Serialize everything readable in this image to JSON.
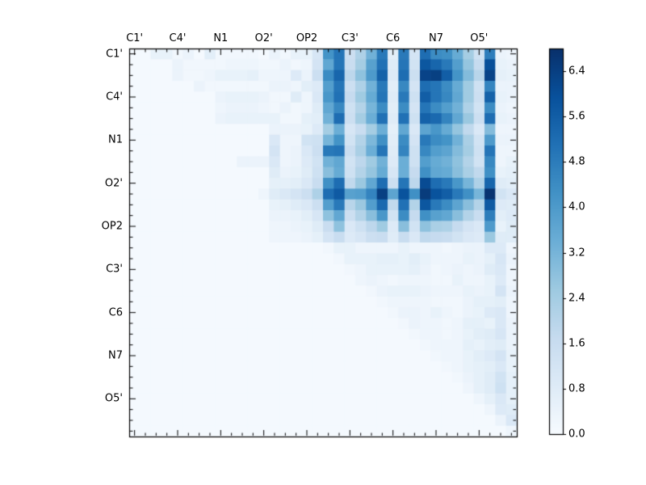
{
  "figure": {
    "background": "#ffffff",
    "axis_color": "#000000",
    "text_color": "#000000"
  },
  "chart_data": {
    "type": "heatmap",
    "n_cells": 36,
    "axis_labels": [
      "C1'",
      "C4'",
      "N1",
      "O2'",
      "OP2",
      "C3'",
      "C6",
      "N7",
      "O5'"
    ],
    "label_cell_indices": [
      0,
      4,
      8,
      12,
      16,
      20,
      24,
      28,
      32
    ],
    "x_axis_side": "top",
    "y_axis_side": "left",
    "grid": false,
    "vmin": 0.0,
    "vmax": 6.8,
    "colormap": {
      "name": "Blues",
      "anchors": [
        [
          0.0,
          "#f7fbff"
        ],
        [
          0.125,
          "#deebf7"
        ],
        [
          0.25,
          "#c6dbef"
        ],
        [
          0.375,
          "#9ecae1"
        ],
        [
          0.5,
          "#6baed6"
        ],
        [
          0.625,
          "#4292c6"
        ],
        [
          0.75,
          "#2171b5"
        ],
        [
          0.875,
          "#08519c"
        ],
        [
          1.0,
          "#08306b"
        ]
      ]
    },
    "colorbar": {
      "position": "right",
      "tick_values": [
        0.0,
        0.8,
        1.6,
        2.4,
        3.2,
        4.0,
        4.8,
        5.6,
        6.4
      ],
      "tick_labels": [
        "0.0",
        "0.8",
        "1.6",
        "2.4",
        "3.2",
        "4.0",
        "4.8",
        "5.6",
        "6.4"
      ]
    },
    "matrix": [
      [
        0.1,
        0.1,
        0.5,
        0.5,
        0.2,
        0.4,
        0.1,
        0.7,
        0.2,
        0.2,
        0.2,
        0.2,
        0.1,
        0.4,
        0.2,
        0.5,
        0.5,
        1.1,
        4.2,
        5.0,
        1.5,
        2.2,
        3.3,
        4.9,
        0.7,
        4.9,
        1.2,
        5.2,
        4.4,
        4.3,
        3.5,
        2.4,
        1.4,
        4.8,
        0.4,
        0.3
      ],
      [
        0.1,
        0.1,
        0.1,
        0.1,
        0.4,
        0.2,
        0.2,
        0.2,
        0.2,
        0.3,
        0.3,
        0.3,
        0.2,
        0.2,
        0.4,
        0.2,
        0.3,
        1.2,
        3.6,
        5.0,
        1.6,
        2.4,
        3.8,
        5.1,
        0.8,
        5.0,
        1.3,
        5.8,
        5.4,
        4.9,
        3.9,
        2.7,
        1.7,
        6.0,
        0.5,
        0.4
      ],
      [
        0.1,
        0.1,
        0.1,
        0.1,
        0.4,
        0.2,
        0.2,
        0.3,
        0.5,
        0.5,
        0.5,
        0.6,
        0.3,
        0.3,
        0.3,
        0.9,
        0.4,
        1.5,
        4.4,
        5.4,
        1.9,
        2.8,
        4.0,
        5.5,
        0.9,
        5.2,
        1.5,
        6.3,
        6.4,
        5.6,
        4.2,
        3.0,
        2.0,
        6.3,
        0.6,
        0.5
      ],
      [
        0.1,
        0.1,
        0.1,
        0.1,
        0.1,
        0.1,
        0.4,
        0.2,
        0.2,
        0.2,
        0.2,
        0.2,
        0.2,
        0.4,
        0.4,
        0.3,
        0.7,
        0.9,
        3.9,
        5.0,
        1.5,
        2.2,
        3.3,
        4.9,
        0.7,
        4.5,
        1.2,
        5.2,
        5.0,
        4.4,
        3.5,
        2.5,
        1.4,
        4.6,
        0.4,
        0.4
      ],
      [
        0.1,
        0.1,
        0.1,
        0.1,
        0.1,
        0.1,
        0.1,
        0.1,
        0.4,
        0.5,
        0.5,
        0.5,
        0.4,
        0.2,
        0.2,
        0.8,
        0.3,
        1.0,
        4.1,
        5.1,
        1.7,
        2.5,
        3.5,
        5.0,
        0.8,
        4.9,
        1.4,
        5.6,
        5.0,
        4.5,
        3.6,
        2.5,
        1.5,
        5.5,
        0.5,
        0.4
      ],
      [
        0.1,
        0.1,
        0.1,
        0.1,
        0.1,
        0.1,
        0.1,
        0.1,
        0.3,
        0.4,
        0.4,
        0.4,
        0.3,
        0.2,
        0.4,
        0.2,
        0.3,
        0.8,
        3.6,
        4.5,
        1.4,
        2.1,
        3.2,
        4.4,
        0.7,
        4.4,
        1.2,
        5.0,
        4.4,
        3.9,
        3.3,
        2.2,
        1.3,
        4.4,
        0.4,
        0.3
      ],
      [
        0.1,
        0.1,
        0.1,
        0.1,
        0.1,
        0.1,
        0.1,
        0.1,
        0.4,
        0.5,
        0.5,
        0.5,
        0.5,
        0.5,
        0.2,
        0.2,
        0.6,
        0.7,
        3.3,
        5.2,
        1.5,
        2.4,
        3.4,
        5.1,
        0.8,
        5.1,
        1.4,
        5.5,
        5.3,
        4.6,
        3.6,
        2.6,
        1.5,
        5.2,
        0.5,
        0.4
      ],
      [
        0.1,
        0.1,
        0.1,
        0.1,
        0.1,
        0.1,
        0.1,
        0.1,
        0.1,
        0.1,
        0.1,
        0.1,
        0.1,
        0.4,
        0.4,
        0.4,
        0.5,
        0.9,
        2.4,
        3.4,
        1.1,
        1.6,
        2.4,
        3.4,
        0.6,
        3.6,
        1.0,
        3.7,
        4.1,
        3.5,
        2.7,
        1.8,
        1.0,
        3.0,
        0.3,
        0.3
      ],
      [
        0.1,
        0.1,
        0.1,
        0.1,
        0.1,
        0.1,
        0.1,
        0.1,
        0.1,
        0.1,
        0.1,
        0.1,
        0.1,
        1.0,
        0.3,
        0.3,
        1.3,
        1.4,
        3.2,
        4.2,
        1.3,
        2.1,
        3.1,
        4.3,
        0.7,
        4.4,
        1.2,
        4.9,
        4.4,
        4.2,
        3.3,
        2.3,
        1.3,
        4.0,
        0.4,
        0.4
      ],
      [
        0.1,
        0.1,
        0.1,
        0.1,
        0.1,
        0.1,
        0.1,
        0.1,
        0.1,
        0.1,
        0.1,
        0.1,
        0.1,
        1.2,
        0.3,
        0.4,
        1.0,
        1.5,
        4.9,
        5.0,
        1.6,
        2.3,
        3.4,
        5.0,
        0.8,
        4.6,
        1.4,
        4.5,
        3.9,
        3.7,
        3.0,
        2.4,
        1.4,
        5.0,
        0.3,
        0.3
      ],
      [
        0.1,
        0.1,
        0.1,
        0.1,
        0.1,
        0.1,
        0.1,
        0.1,
        0.1,
        0.1,
        0.4,
        0.4,
        0.4,
        1.0,
        0.3,
        0.4,
        0.9,
        1.3,
        3.3,
        3.6,
        1.3,
        1.9,
        2.5,
        3.3,
        0.9,
        3.4,
        1.4,
        3.9,
        3.5,
        3.3,
        2.8,
        2.1,
        1.3,
        4.5,
        0.3,
        0.5
      ],
      [
        0.1,
        0.1,
        0.1,
        0.1,
        0.1,
        0.1,
        0.1,
        0.1,
        0.1,
        0.1,
        0.1,
        0.1,
        0.1,
        0.8,
        0.4,
        0.5,
        0.8,
        1.4,
        2.9,
        3.5,
        1.4,
        2.1,
        2.7,
        3.5,
        1.1,
        3.4,
        1.7,
        4.3,
        3.6,
        3.5,
        2.9,
        2.3,
        1.8,
        4.3,
        0.5,
        0.6
      ],
      [
        0.1,
        0.1,
        0.1,
        0.1,
        0.1,
        0.1,
        0.1,
        0.1,
        0.1,
        0.1,
        0.1,
        0.1,
        0.1,
        0.6,
        0.6,
        0.7,
        1.0,
        1.6,
        4.3,
        5.2,
        1.8,
        2.6,
        3.6,
        5.2,
        1.5,
        5.0,
        1.9,
        6.1,
        5.2,
        4.9,
        4.1,
        3.2,
        2.2,
        5.4,
        0.8,
        0.7
      ],
      [
        0.1,
        0.1,
        0.1,
        0.1,
        0.1,
        0.1,
        0.1,
        0.1,
        0.1,
        0.1,
        0.1,
        0.1,
        0.3,
        0.8,
        1.0,
        1.2,
        1.5,
        2.2,
        5.2,
        5.7,
        3.8,
        3.9,
        4.6,
        6.4,
        3.7,
        5.9,
        4.3,
        6.5,
        5.9,
        5.6,
        4.9,
        4.3,
        3.2,
        6.7,
        1.3,
        1.0
      ],
      [
        0.1,
        0.1,
        0.1,
        0.1,
        0.1,
        0.1,
        0.1,
        0.1,
        0.1,
        0.1,
        0.1,
        0.1,
        0.1,
        0.5,
        0.6,
        0.8,
        1.0,
        1.5,
        3.9,
        4.9,
        2.0,
        2.6,
        3.9,
        5.3,
        1.8,
        5.1,
        2.1,
        5.8,
        4.9,
        4.4,
        3.7,
        2.9,
        2.1,
        5.7,
        0.9,
        0.8
      ],
      [
        0.1,
        0.1,
        0.1,
        0.1,
        0.1,
        0.1,
        0.1,
        0.1,
        0.1,
        0.1,
        0.1,
        0.1,
        0.1,
        0.4,
        0.4,
        0.5,
        0.7,
        1.1,
        2.8,
        3.6,
        1.5,
        2.1,
        2.9,
        4.1,
        1.3,
        4.4,
        1.7,
        4.3,
        3.8,
        3.6,
        2.9,
        2.1,
        1.6,
        4.8,
        0.7,
        0.9
      ],
      [
        0.1,
        0.1,
        0.1,
        0.1,
        0.1,
        0.1,
        0.1,
        0.1,
        0.1,
        0.1,
        0.1,
        0.1,
        0.1,
        0.3,
        0.3,
        0.4,
        0.5,
        0.8,
        1.6,
        2.8,
        1.0,
        1.4,
        1.9,
        2.5,
        0.9,
        2.9,
        1.3,
        2.8,
        2.3,
        2.2,
        1.7,
        1.2,
        1.0,
        4.0,
        0.5,
        0.8
      ],
      [
        0.1,
        0.1,
        0.1,
        0.1,
        0.1,
        0.1,
        0.1,
        0.1,
        0.1,
        0.1,
        0.1,
        0.1,
        0.1,
        0.3,
        0.3,
        0.3,
        0.4,
        0.6,
        1.2,
        1.6,
        0.9,
        1.1,
        1.5,
        1.6,
        0.8,
        1.6,
        1.0,
        1.8,
        1.7,
        1.6,
        1.3,
        1.0,
        0.9,
        2.6,
        0.8,
        0.8
      ],
      [
        0.1,
        0.1,
        0.1,
        0.1,
        0.1,
        0.1,
        0.1,
        0.1,
        0.1,
        0.1,
        0.1,
        0.1,
        0.1,
        0.1,
        0.1,
        0.1,
        0.1,
        0.1,
        0.2,
        0.5,
        0.5,
        0.3,
        0.3,
        0.3,
        0.3,
        0.5,
        0.3,
        0.3,
        0.3,
        0.2,
        0.3,
        0.4,
        0.4,
        0.9,
        0.9,
        0.3
      ],
      [
        0.1,
        0.1,
        0.1,
        0.1,
        0.1,
        0.1,
        0.1,
        0.1,
        0.1,
        0.1,
        0.1,
        0.1,
        0.1,
        0.1,
        0.1,
        0.1,
        0.1,
        0.1,
        0.1,
        0.2,
        0.5,
        0.5,
        0.5,
        0.6,
        0.6,
        0.5,
        0.7,
        0.5,
        0.3,
        0.3,
        0.3,
        0.5,
        0.4,
        0.6,
        1.1,
        0.4
      ],
      [
        0.1,
        0.1,
        0.1,
        0.1,
        0.1,
        0.1,
        0.1,
        0.1,
        0.1,
        0.1,
        0.1,
        0.1,
        0.1,
        0.1,
        0.1,
        0.1,
        0.1,
        0.1,
        0.1,
        0.1,
        0.2,
        0.3,
        0.5,
        0.5,
        0.5,
        0.5,
        0.6,
        0.4,
        0.2,
        0.3,
        0.4,
        0.3,
        0.4,
        0.8,
        1.0,
        0.3
      ],
      [
        0.1,
        0.1,
        0.1,
        0.1,
        0.1,
        0.1,
        0.1,
        0.1,
        0.1,
        0.1,
        0.1,
        0.1,
        0.1,
        0.1,
        0.1,
        0.1,
        0.1,
        0.1,
        0.1,
        0.1,
        0.1,
        0.3,
        0.4,
        0.3,
        0.2,
        0.3,
        0.3,
        0.3,
        0.2,
        0.2,
        0.5,
        0.3,
        0.3,
        0.5,
        0.9,
        0.3
      ],
      [
        0.1,
        0.1,
        0.1,
        0.1,
        0.1,
        0.1,
        0.1,
        0.1,
        0.1,
        0.1,
        0.1,
        0.1,
        0.1,
        0.1,
        0.1,
        0.1,
        0.1,
        0.1,
        0.1,
        0.1,
        0.1,
        0.1,
        0.2,
        0.4,
        0.5,
        0.5,
        0.5,
        0.4,
        0.3,
        0.3,
        0.3,
        0.5,
        0.4,
        0.5,
        1.2,
        0.4
      ],
      [
        0.1,
        0.1,
        0.1,
        0.1,
        0.1,
        0.1,
        0.1,
        0.1,
        0.1,
        0.1,
        0.1,
        0.1,
        0.1,
        0.1,
        0.1,
        0.1,
        0.1,
        0.1,
        0.1,
        0.1,
        0.1,
        0.1,
        0.1,
        0.2,
        0.3,
        0.3,
        0.3,
        0.3,
        0.2,
        0.2,
        0.2,
        0.4,
        0.6,
        0.6,
        0.7,
        0.3
      ],
      [
        0.1,
        0.1,
        0.1,
        0.1,
        0.1,
        0.1,
        0.1,
        0.1,
        0.1,
        0.1,
        0.1,
        0.1,
        0.1,
        0.1,
        0.1,
        0.1,
        0.1,
        0.1,
        0.1,
        0.1,
        0.1,
        0.1,
        0.1,
        0.1,
        0.2,
        0.4,
        0.4,
        0.3,
        0.5,
        0.3,
        0.2,
        0.4,
        0.5,
        0.9,
        1.0,
        0.3
      ],
      [
        0.1,
        0.1,
        0.1,
        0.1,
        0.1,
        0.1,
        0.1,
        0.1,
        0.1,
        0.1,
        0.1,
        0.1,
        0.1,
        0.1,
        0.1,
        0.1,
        0.1,
        0.1,
        0.1,
        0.1,
        0.1,
        0.1,
        0.1,
        0.1,
        0.1,
        0.2,
        0.4,
        0.3,
        0.3,
        0.2,
        0.3,
        0.6,
        0.6,
        0.5,
        1.0,
        0.4
      ],
      [
        0.1,
        0.1,
        0.1,
        0.1,
        0.1,
        0.1,
        0.1,
        0.1,
        0.1,
        0.1,
        0.1,
        0.1,
        0.1,
        0.1,
        0.1,
        0.1,
        0.1,
        0.1,
        0.1,
        0.1,
        0.1,
        0.1,
        0.1,
        0.1,
        0.1,
        0.1,
        0.2,
        0.3,
        0.3,
        0.2,
        0.3,
        0.5,
        0.7,
        0.8,
        1.1,
        0.4
      ],
      [
        0.1,
        0.1,
        0.1,
        0.1,
        0.1,
        0.1,
        0.1,
        0.1,
        0.1,
        0.1,
        0.1,
        0.1,
        0.1,
        0.1,
        0.1,
        0.1,
        0.1,
        0.1,
        0.1,
        0.1,
        0.1,
        0.1,
        0.1,
        0.1,
        0.1,
        0.1,
        0.1,
        0.2,
        0.3,
        0.3,
        0.3,
        0.6,
        0.5,
        0.7,
        0.8,
        0.4
      ],
      [
        0.1,
        0.1,
        0.1,
        0.1,
        0.1,
        0.1,
        0.1,
        0.1,
        0.1,
        0.1,
        0.1,
        0.1,
        0.1,
        0.1,
        0.1,
        0.1,
        0.1,
        0.1,
        0.1,
        0.1,
        0.1,
        0.1,
        0.1,
        0.1,
        0.1,
        0.1,
        0.1,
        0.1,
        0.2,
        0.3,
        0.3,
        0.5,
        0.7,
        0.9,
        1.2,
        0.5
      ],
      [
        0.1,
        0.1,
        0.1,
        0.1,
        0.1,
        0.1,
        0.1,
        0.1,
        0.1,
        0.1,
        0.1,
        0.1,
        0.1,
        0.1,
        0.1,
        0.1,
        0.1,
        0.1,
        0.1,
        0.1,
        0.1,
        0.1,
        0.1,
        0.1,
        0.1,
        0.1,
        0.1,
        0.1,
        0.1,
        0.2,
        0.3,
        0.5,
        0.6,
        0.7,
        1.0,
        0.5
      ],
      [
        0.1,
        0.1,
        0.1,
        0.1,
        0.1,
        0.1,
        0.1,
        0.1,
        0.1,
        0.1,
        0.1,
        0.1,
        0.1,
        0.1,
        0.1,
        0.1,
        0.1,
        0.1,
        0.1,
        0.1,
        0.1,
        0.1,
        0.1,
        0.1,
        0.1,
        0.1,
        0.1,
        0.1,
        0.1,
        0.1,
        0.2,
        0.4,
        0.6,
        0.8,
        1.3,
        0.6
      ],
      [
        0.1,
        0.1,
        0.1,
        0.1,
        0.1,
        0.1,
        0.1,
        0.1,
        0.1,
        0.1,
        0.1,
        0.1,
        0.1,
        0.1,
        0.1,
        0.1,
        0.1,
        0.1,
        0.1,
        0.1,
        0.1,
        0.1,
        0.1,
        0.1,
        0.1,
        0.1,
        0.1,
        0.1,
        0.1,
        0.1,
        0.1,
        0.3,
        0.6,
        0.8,
        1.4,
        0.6
      ],
      [
        0.1,
        0.1,
        0.1,
        0.1,
        0.1,
        0.1,
        0.1,
        0.1,
        0.1,
        0.1,
        0.1,
        0.1,
        0.1,
        0.1,
        0.1,
        0.1,
        0.1,
        0.1,
        0.1,
        0.1,
        0.1,
        0.1,
        0.1,
        0.1,
        0.1,
        0.1,
        0.1,
        0.1,
        0.1,
        0.1,
        0.1,
        0.1,
        0.3,
        0.6,
        1.0,
        0.6
      ],
      [
        0.1,
        0.1,
        0.1,
        0.1,
        0.1,
        0.1,
        0.1,
        0.1,
        0.1,
        0.1,
        0.1,
        0.1,
        0.1,
        0.1,
        0.1,
        0.1,
        0.1,
        0.1,
        0.1,
        0.1,
        0.1,
        0.1,
        0.1,
        0.1,
        0.1,
        0.1,
        0.1,
        0.1,
        0.1,
        0.1,
        0.1,
        0.1,
        0.1,
        0.3,
        0.9,
        0.8
      ],
      [
        0.1,
        0.1,
        0.1,
        0.1,
        0.1,
        0.1,
        0.1,
        0.1,
        0.1,
        0.1,
        0.1,
        0.1,
        0.1,
        0.1,
        0.1,
        0.1,
        0.1,
        0.1,
        0.1,
        0.1,
        0.1,
        0.1,
        0.1,
        0.1,
        0.1,
        0.1,
        0.1,
        0.1,
        0.1,
        0.1,
        0.1,
        0.1,
        0.1,
        0.1,
        0.4,
        1.0
      ],
      [
        0.1,
        0.1,
        0.1,
        0.1,
        0.1,
        0.1,
        0.1,
        0.1,
        0.1,
        0.1,
        0.1,
        0.1,
        0.1,
        0.1,
        0.1,
        0.1,
        0.1,
        0.1,
        0.1,
        0.1,
        0.1,
        0.1,
        0.1,
        0.1,
        0.1,
        0.1,
        0.1,
        0.1,
        0.1,
        0.1,
        0.1,
        0.1,
        0.1,
        0.1,
        0.1,
        0.3
      ]
    ]
  }
}
